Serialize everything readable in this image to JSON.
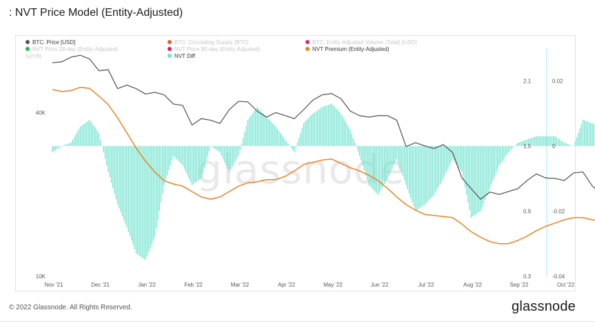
{
  "title": ": NVT Price Model (Entity-Adjusted)",
  "footer": {
    "copyright": "© 2022 Glassnode. All Rights Reserved.",
    "logo": "glassnode"
  },
  "watermark": "glassnode",
  "legend": [
    {
      "label": "BTC: Price [USD]",
      "color": "#555555",
      "active": true
    },
    {
      "label": "BTC: Circulating Supply [BTC]",
      "color": "#f05a28",
      "active": false
    },
    {
      "label": "BTC: Entity-Adjusted Volume (Total) [USD]",
      "color": "#e0218a",
      "active": false
    },
    {
      "label": "NVT Price 28-day (Entity-Adjusted)",
      "color": "#1db954",
      "active": false
    },
    {
      "label": "NVT Price 90-day (Entity-Adjusted)",
      "color": "#e8175d",
      "active": false
    },
    {
      "label": "NVT Premium (Entity-Adjusted)",
      "color": "#f07f1a",
      "active": true
    },
    {
      "label": "NVT Diff",
      "color": "#6fe3cf",
      "active": true
    }
  ],
  "legend_note": "(y2=8)",
  "chart_data": {
    "type": "line",
    "x_tick_labels": [
      "Nov '21",
      "Dec '21",
      "Jan '22",
      "Feb '22",
      "Mar '22",
      "Apr '22",
      "May '22",
      "Jun '22",
      "Jul '22",
      "Aug '22",
      "Sep '22",
      "Oct '22"
    ],
    "y_left": {
      "scale": "log",
      "range": [
        10000,
        69000
      ],
      "tick_labels": [
        "40K",
        "10K"
      ],
      "tick_values": [
        40000,
        10000
      ]
    },
    "y_mid": {
      "range": [
        0.3,
        2.4
      ],
      "tick_labels": [
        "2.1",
        "1.5",
        "0.9",
        "0.3"
      ],
      "tick_values": [
        2.1,
        1.5,
        0.9,
        0.3
      ]
    },
    "y_right": {
      "range": [
        -0.04,
        0.03
      ],
      "tick_labels": [
        "0.02",
        "0",
        "-0.02",
        "-0.04"
      ],
      "tick_values": [
        0.02,
        0,
        -0.02,
        -0.04
      ]
    },
    "series": [
      {
        "name": "BTC: Price [USD]",
        "axis": "left",
        "color": "#5a5a5a",
        "points": [
          [
            0,
            61000
          ],
          [
            0.2,
            61500
          ],
          [
            0.4,
            64000
          ],
          [
            0.6,
            65000
          ],
          [
            0.8,
            63000
          ],
          [
            1.0,
            57000
          ],
          [
            1.2,
            57500
          ],
          [
            1.4,
            49000
          ],
          [
            1.6,
            50500
          ],
          [
            1.8,
            49000
          ],
          [
            2.0,
            46800
          ],
          [
            2.2,
            47500
          ],
          [
            2.4,
            46500
          ],
          [
            2.6,
            43000
          ],
          [
            2.8,
            42500
          ],
          [
            3.0,
            36000
          ],
          [
            3.2,
            38000
          ],
          [
            3.4,
            37500
          ],
          [
            3.6,
            36500
          ],
          [
            3.8,
            41000
          ],
          [
            4.0,
            44000
          ],
          [
            4.2,
            43800
          ],
          [
            4.4,
            40500
          ],
          [
            4.6,
            38500
          ],
          [
            4.8,
            40000
          ],
          [
            5.0,
            39000
          ],
          [
            5.2,
            38000
          ],
          [
            5.4,
            41000
          ],
          [
            5.6,
            44500
          ],
          [
            5.8,
            46500
          ],
          [
            6.0,
            47000
          ],
          [
            6.2,
            45000
          ],
          [
            6.4,
            40500
          ],
          [
            6.6,
            39000
          ],
          [
            6.8,
            38500
          ],
          [
            7.0,
            39000
          ],
          [
            7.2,
            39000
          ],
          [
            7.4,
            37500
          ],
          [
            7.6,
            30000
          ],
          [
            7.8,
            31000
          ],
          [
            8.0,
            30200
          ],
          [
            8.2,
            29500
          ],
          [
            8.4,
            30500
          ],
          [
            8.6,
            28500
          ],
          [
            8.8,
            23000
          ],
          [
            9.0,
            21000
          ],
          [
            9.2,
            19200
          ],
          [
            9.4,
            20400
          ],
          [
            9.6,
            20000
          ],
          [
            9.8,
            20500
          ],
          [
            10.0,
            21000
          ],
          [
            10.2,
            22500
          ],
          [
            10.4,
            23800
          ],
          [
            10.6,
            23000
          ],
          [
            10.8,
            22900
          ],
          [
            11.0,
            22500
          ],
          [
            11.2,
            24000
          ],
          [
            11.4,
            24200
          ],
          [
            11.6,
            21500
          ],
          [
            11.8,
            20000
          ],
          [
            12.0,
            20300
          ],
          [
            12.2,
            21500
          ],
          [
            12.4,
            19800
          ],
          [
            12.6,
            19000
          ],
          [
            12.8,
            19500
          ],
          [
            13.0,
            19300
          ],
          [
            13.2,
            19700
          ],
          [
            13.4,
            19600
          ],
          [
            13.6,
            19100
          ],
          [
            13.8,
            19200
          ],
          [
            14.0,
            19600
          ],
          [
            14.2,
            19800
          ],
          [
            14.4,
            20500
          ]
        ]
      },
      {
        "name": "NVT Premium (Entity-Adjusted)",
        "axis": "mid",
        "color": "#f07f1a",
        "points": [
          [
            0,
            2.02
          ],
          [
            0.2,
            2.0
          ],
          [
            0.4,
            2.01
          ],
          [
            0.6,
            2.04
          ],
          [
            0.8,
            2.03
          ],
          [
            1.0,
            1.96
          ],
          [
            1.2,
            1.88
          ],
          [
            1.4,
            1.76
          ],
          [
            1.6,
            1.62
          ],
          [
            1.8,
            1.48
          ],
          [
            2.0,
            1.36
          ],
          [
            2.2,
            1.26
          ],
          [
            2.4,
            1.18
          ],
          [
            2.6,
            1.15
          ],
          [
            2.8,
            1.13
          ],
          [
            3.0,
            1.08
          ],
          [
            3.2,
            1.03
          ],
          [
            3.4,
            1.01
          ],
          [
            3.6,
            1.03
          ],
          [
            3.8,
            1.08
          ],
          [
            4.0,
            1.13
          ],
          [
            4.2,
            1.16
          ],
          [
            4.4,
            1.17
          ],
          [
            4.6,
            1.19
          ],
          [
            4.8,
            1.19
          ],
          [
            5.0,
            1.22
          ],
          [
            5.2,
            1.27
          ],
          [
            5.4,
            1.33
          ],
          [
            5.6,
            1.35
          ],
          [
            5.8,
            1.37
          ],
          [
            6.0,
            1.38
          ],
          [
            6.2,
            1.34
          ],
          [
            6.4,
            1.3
          ],
          [
            6.6,
            1.27
          ],
          [
            6.8,
            1.23
          ],
          [
            7.0,
            1.18
          ],
          [
            7.2,
            1.11
          ],
          [
            7.4,
            1.03
          ],
          [
            7.6,
            0.96
          ],
          [
            7.8,
            0.91
          ],
          [
            8.0,
            0.87
          ],
          [
            8.2,
            0.86
          ],
          [
            8.4,
            0.85
          ],
          [
            8.6,
            0.84
          ],
          [
            8.8,
            0.78
          ],
          [
            9.0,
            0.71
          ],
          [
            9.2,
            0.66
          ],
          [
            9.4,
            0.62
          ],
          [
            9.6,
            0.6
          ],
          [
            9.8,
            0.6
          ],
          [
            10.0,
            0.63
          ],
          [
            10.2,
            0.67
          ],
          [
            10.4,
            0.72
          ],
          [
            10.6,
            0.76
          ],
          [
            10.8,
            0.79
          ],
          [
            11.0,
            0.82
          ],
          [
            11.2,
            0.84
          ],
          [
            11.4,
            0.84
          ],
          [
            11.6,
            0.82
          ],
          [
            11.8,
            0.81
          ],
          [
            12.0,
            0.82
          ],
          [
            12.2,
            0.84
          ],
          [
            12.4,
            0.84
          ],
          [
            12.6,
            0.85
          ],
          [
            12.8,
            0.85
          ],
          [
            13.0,
            0.85
          ],
          [
            13.2,
            0.86
          ],
          [
            13.4,
            0.86
          ],
          [
            13.6,
            0.86
          ],
          [
            13.8,
            0.86
          ],
          [
            14.0,
            0.86
          ],
          [
            14.2,
            0.87
          ],
          [
            14.4,
            0.89
          ]
        ]
      },
      {
        "name": "NVT Diff",
        "axis": "right",
        "color": "#6fe3cf",
        "type": "bar",
        "points": [
          [
            0,
            -0.002
          ],
          [
            0.2,
            0
          ],
          [
            0.4,
            0.001
          ],
          [
            0.6,
            0.006
          ],
          [
            0.8,
            0.008
          ],
          [
            1.0,
            0.004
          ],
          [
            1.2,
            -0.008
          ],
          [
            1.4,
            -0.018
          ],
          [
            1.6,
            -0.025
          ],
          [
            1.8,
            -0.033
          ],
          [
            2.0,
            -0.035
          ],
          [
            2.2,
            -0.028
          ],
          [
            2.4,
            -0.012
          ],
          [
            2.6,
            -0.003
          ],
          [
            2.8,
            -0.006
          ],
          [
            3.0,
            -0.012
          ],
          [
            3.2,
            -0.01
          ],
          [
            3.4,
            0
          ],
          [
            3.6,
            -0.002
          ],
          [
            3.8,
            -0.008
          ],
          [
            4.0,
            -0.003
          ],
          [
            4.2,
            0.008
          ],
          [
            4.4,
            0.012
          ],
          [
            4.6,
            0.009
          ],
          [
            4.8,
            0.006
          ],
          [
            5.0,
            0.002
          ],
          [
            5.2,
            -0.002
          ],
          [
            5.4,
            0.007
          ],
          [
            5.6,
            0.01
          ],
          [
            5.8,
            0.012
          ],
          [
            6.0,
            0.013
          ],
          [
            6.2,
            0.01
          ],
          [
            6.4,
            0.005
          ],
          [
            6.6,
            -0.003
          ],
          [
            6.8,
            -0.012
          ],
          [
            7.0,
            -0.015
          ],
          [
            7.2,
            -0.01
          ],
          [
            7.4,
            -0.004
          ],
          [
            7.6,
            -0.012
          ],
          [
            7.8,
            -0.02
          ],
          [
            8.0,
            -0.018
          ],
          [
            8.2,
            -0.015
          ],
          [
            8.4,
            -0.01
          ],
          [
            8.6,
            -0.004
          ],
          [
            8.8,
            -0.008
          ],
          [
            9.0,
            -0.022
          ],
          [
            9.2,
            -0.02
          ],
          [
            9.4,
            -0.013
          ],
          [
            9.6,
            -0.006
          ],
          [
            9.8,
            -0.002
          ],
          [
            10.0,
            0.001
          ],
          [
            10.2,
            0.002
          ],
          [
            10.4,
            0.003
          ],
          [
            10.6,
            0.003
          ],
          [
            10.8,
            0.003
          ],
          [
            11.0,
            0.001
          ],
          [
            11.2,
            0
          ],
          [
            11.4,
            0.008
          ],
          [
            11.6,
            0.007
          ],
          [
            11.8,
            0.005
          ],
          [
            12.0,
            0.001
          ],
          [
            12.2,
            0.002
          ],
          [
            12.4,
            0.004
          ],
          [
            12.6,
            0
          ],
          [
            12.8,
            -0.001
          ],
          [
            13.0,
            0
          ],
          [
            13.2,
            -0.003
          ],
          [
            13.4,
            -0.006
          ],
          [
            13.6,
            0
          ],
          [
            13.8,
            0.004
          ],
          [
            14.0,
            0.008
          ],
          [
            14.2,
            0.004
          ],
          [
            14.4,
            0.007
          ]
        ]
      }
    ],
    "highlight_band": {
      "from": 13.6,
      "to": 14.4,
      "color": "#e3f6fa"
    }
  }
}
